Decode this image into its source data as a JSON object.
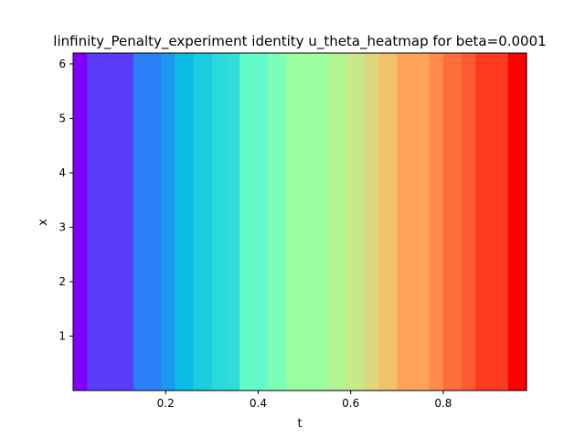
{
  "chart_data": {
    "type": "heatmap",
    "title": "linfinity_Penalty_experiment identity u_theta_heatmap for beta=0.0001",
    "xlabel": "t",
    "ylabel": "x",
    "xlim": [
      0.0,
      0.98
    ],
    "ylim": [
      0.0,
      6.2
    ],
    "x_ticks": [
      "0.2",
      "0.4",
      "0.6",
      "0.8"
    ],
    "y_ticks": [
      "1",
      "2",
      "3",
      "4",
      "5",
      "6"
    ],
    "colormap": "rainbow",
    "grid": false,
    "bands": [
      {
        "t_start": 0.0,
        "t_end": 0.03,
        "color": "#7f00ff"
      },
      {
        "t_start": 0.03,
        "t_end": 0.13,
        "color": "#5a3cfd"
      },
      {
        "t_start": 0.13,
        "t_end": 0.19,
        "color": "#2a7ef6"
      },
      {
        "t_start": 0.19,
        "t_end": 0.22,
        "color": "#1c98f0"
      },
      {
        "t_start": 0.22,
        "t_end": 0.26,
        "color": "#0bbde5"
      },
      {
        "t_start": 0.26,
        "t_end": 0.3,
        "color": "#1acee0"
      },
      {
        "t_start": 0.3,
        "t_end": 0.33,
        "color": "#2ad9dc"
      },
      {
        "t_start": 0.33,
        "t_end": 0.36,
        "color": "#2fdcd8"
      },
      {
        "t_start": 0.36,
        "t_end": 0.42,
        "color": "#62fbc9"
      },
      {
        "t_start": 0.42,
        "t_end": 0.46,
        "color": "#7cfeb7"
      },
      {
        "t_start": 0.46,
        "t_end": 0.55,
        "color": "#99ff9f"
      },
      {
        "t_start": 0.55,
        "t_end": 0.59,
        "color": "#b3f592"
      },
      {
        "t_start": 0.59,
        "t_end": 0.63,
        "color": "#c8e889"
      },
      {
        "t_start": 0.63,
        "t_end": 0.66,
        "color": "#dfd67d"
      },
      {
        "t_start": 0.66,
        "t_end": 0.7,
        "color": "#f0c26b"
      },
      {
        "t_start": 0.7,
        "t_end": 0.77,
        "color": "#ffa25a"
      },
      {
        "t_start": 0.77,
        "t_end": 0.8,
        "color": "#ff8a4b"
      },
      {
        "t_start": 0.8,
        "t_end": 0.84,
        "color": "#ff6e3c"
      },
      {
        "t_start": 0.84,
        "t_end": 0.87,
        "color": "#ff5a30"
      },
      {
        "t_start": 0.87,
        "t_end": 0.94,
        "color": "#ff3a1e"
      },
      {
        "t_start": 0.94,
        "t_end": 0.98,
        "color": "#ff0000"
      }
    ]
  }
}
